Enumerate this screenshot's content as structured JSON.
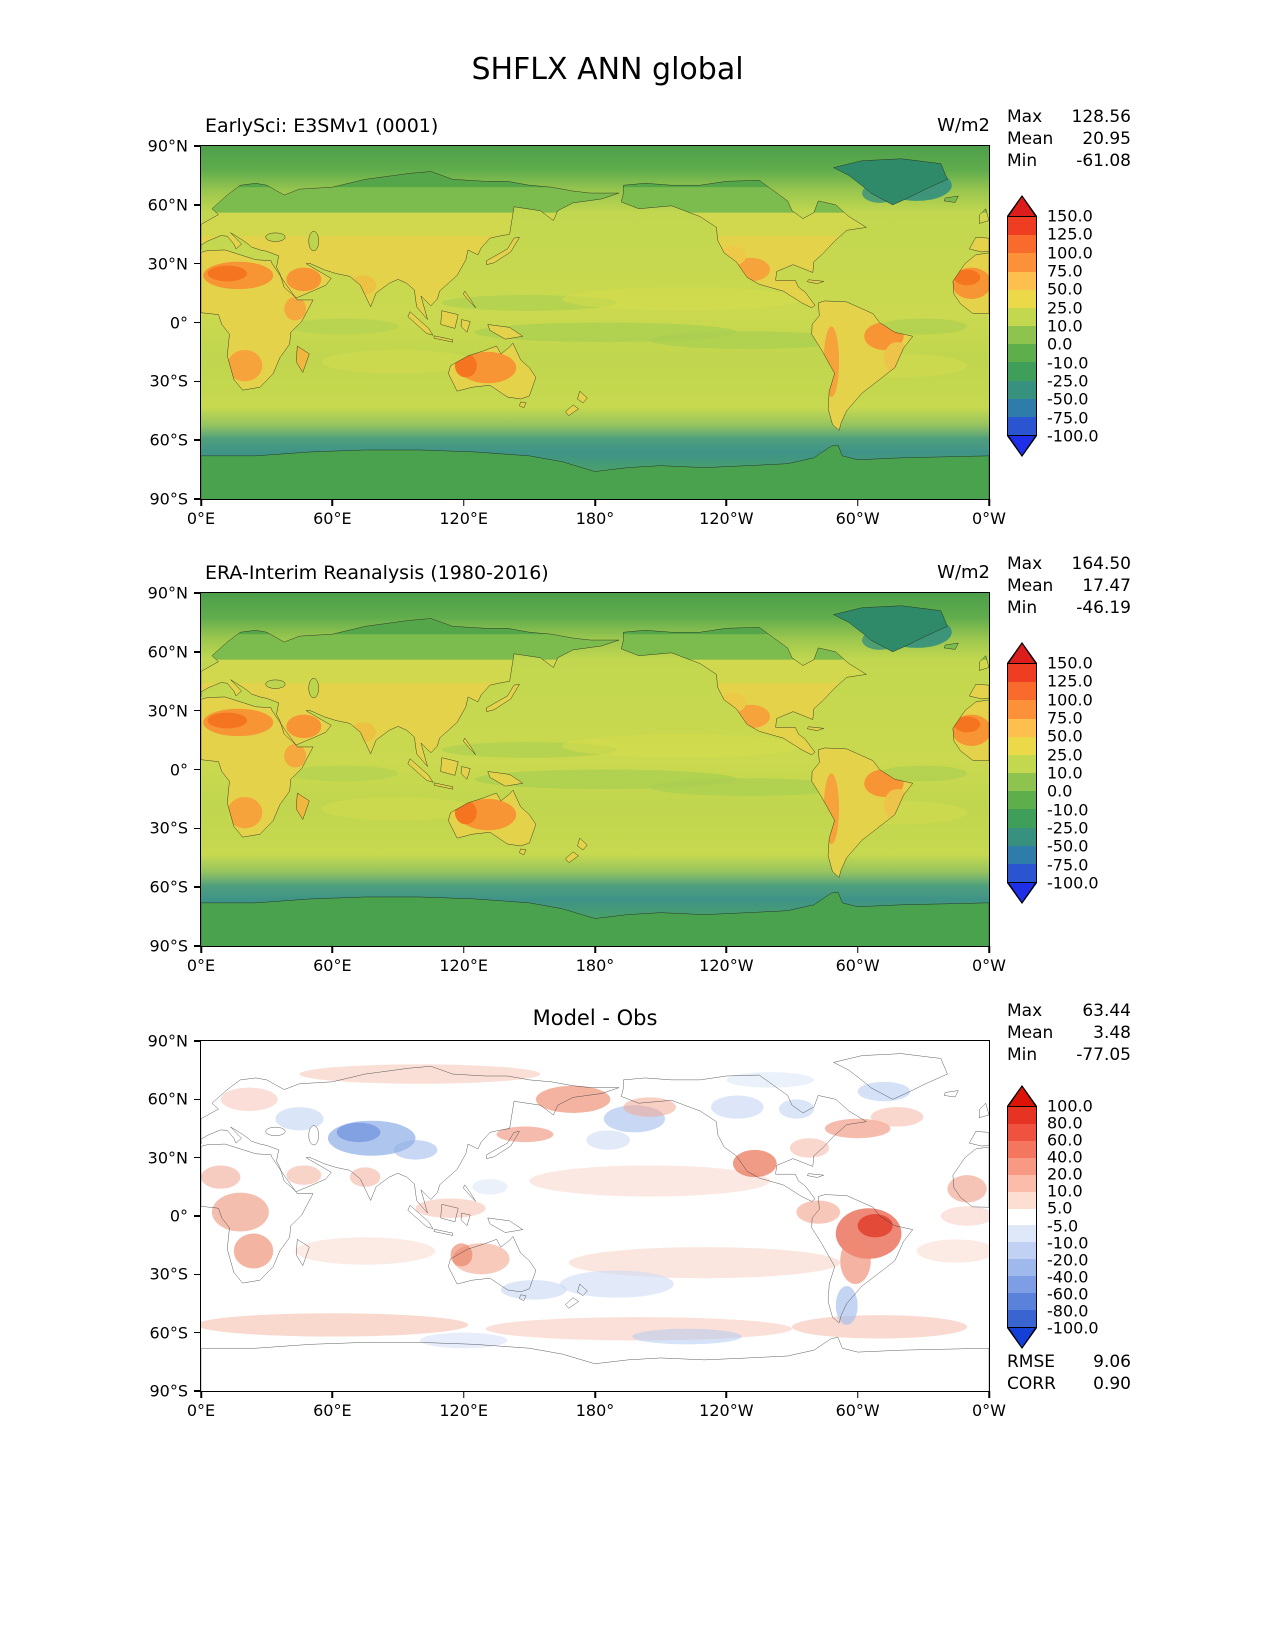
{
  "chart_data": {
    "type": "heatmap",
    "figure_title": "SHFLX ANN global",
    "stats_labels": {
      "max": "Max",
      "mean": "Mean",
      "min": "Min",
      "rmse": "RMSE",
      "corr": "CORR"
    },
    "panels": [
      {
        "title": "EarlySci: E3SMv1 (0001)",
        "units": "W/m2",
        "stats": {
          "max": "128.56",
          "mean": "20.95",
          "min": "-61.08"
        },
        "colorbar": {
          "levels": [
            "150.0",
            "125.0",
            "100.0",
            "75.0",
            "50.0",
            "25.0",
            "10.0",
            "0.0",
            "-10.0",
            "-25.0",
            "-50.0",
            "-75.0",
            "-100.0"
          ],
          "colors": [
            "#dd1c1c",
            "#ee3d23",
            "#f96b2c",
            "#fc9139",
            "#fdc04e",
            "#ebd94a",
            "#c3d84f",
            "#8fc34f",
            "#5eae4c",
            "#3f9e59",
            "#38917e",
            "#2f7cab",
            "#2b55d0",
            "#1f2fe8"
          ]
        },
        "yticks": [
          "90°N",
          "60°N",
          "30°N",
          "0°",
          "30°S",
          "60°S",
          "90°S"
        ],
        "xticks": [
          "0°E",
          "60°E",
          "120°E",
          "180°",
          "120°W",
          "60°W",
          "0°W"
        ]
      },
      {
        "title": "ERA-Interim Reanalysis (1980-2016)",
        "units": "W/m2",
        "stats": {
          "max": "164.50",
          "mean": "17.47",
          "min": "-46.19"
        },
        "colorbar": {
          "levels": [
            "150.0",
            "125.0",
            "100.0",
            "75.0",
            "50.0",
            "25.0",
            "10.0",
            "0.0",
            "-10.0",
            "-25.0",
            "-50.0",
            "-75.0",
            "-100.0"
          ],
          "colors": [
            "#dd1c1c",
            "#ee3d23",
            "#f96b2c",
            "#fc9139",
            "#fdc04e",
            "#ebd94a",
            "#c3d84f",
            "#8fc34f",
            "#5eae4c",
            "#3f9e59",
            "#38917e",
            "#2f7cab",
            "#2b55d0",
            "#1f2fe8"
          ]
        },
        "yticks": [
          "90°N",
          "60°N",
          "30°N",
          "0°",
          "30°S",
          "60°S",
          "90°S"
        ],
        "xticks": [
          "0°E",
          "60°E",
          "120°E",
          "180°",
          "120°W",
          "60°W",
          "0°W"
        ]
      },
      {
        "title": "Model - Obs",
        "units": "",
        "stats": {
          "max": "63.44",
          "mean": "3.48",
          "min": "-77.05"
        },
        "extra_stats": {
          "rmse": "9.06",
          "corr": "0.90"
        },
        "colorbar": {
          "levels": [
            "100.0",
            "80.0",
            "60.0",
            "40.0",
            "20.0",
            "10.0",
            "5.0",
            "-5.0",
            "-10.0",
            "-20.0",
            "-40.0",
            "-60.0",
            "-80.0",
            "-100.0"
          ],
          "colors": [
            "#dc1408",
            "#e73323",
            "#ef5340",
            "#f4765f",
            "#f89a83",
            "#fbbcaa",
            "#fdded3",
            "#ffffff",
            "#dfe8f8",
            "#c0d1f3",
            "#9fb9ec",
            "#7d9ee4",
            "#5a82da",
            "#3a64d0",
            "#1440d8"
          ]
        },
        "yticks": [
          "90°N",
          "60°N",
          "30°N",
          "0°",
          "30°S",
          "60°S",
          "90°S"
        ],
        "xticks": [
          "0°E",
          "60°E",
          "120°E",
          "180°",
          "120°W",
          "60°W",
          "0°W"
        ]
      }
    ]
  }
}
